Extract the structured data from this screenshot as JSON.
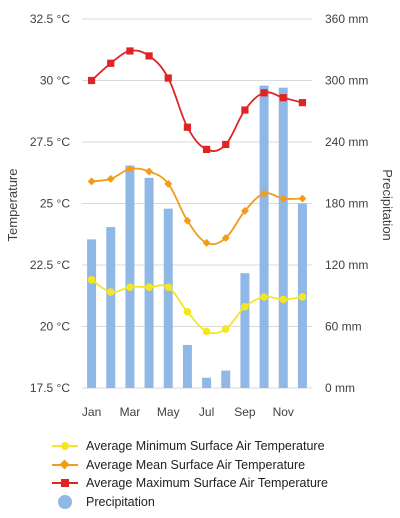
{
  "chart_data": {
    "type": "bar+line",
    "title": "",
    "categories": [
      "Jan",
      "Feb",
      "Mar",
      "Apr",
      "May",
      "Jun",
      "Jul",
      "Aug",
      "Sep",
      "Oct",
      "Nov",
      "Dec"
    ],
    "x_tick_labels": [
      "Jan",
      "",
      "Mar",
      "",
      "May",
      "",
      "Jul",
      "",
      "Sep",
      "",
      "Nov",
      ""
    ],
    "left_axis": {
      "label": "Temperature",
      "range": [
        17.5,
        32.5
      ],
      "ticks": [
        17.5,
        20,
        22.5,
        25,
        27.5,
        30,
        32.5
      ],
      "tick_labels": [
        "17.5 °C",
        "20 °C",
        "22.5 °C",
        "25 °C",
        "27.5 °C",
        "30 °C",
        "32.5 °C"
      ]
    },
    "right_axis": {
      "label": "Precipitation",
      "range": [
        0,
        360
      ],
      "ticks": [
        0,
        60,
        120,
        180,
        240,
        300,
        360
      ],
      "tick_labels": [
        "0 mm",
        "60 mm",
        "120 mm",
        "180 mm",
        "240 mm",
        "300 mm",
        "360 mm"
      ]
    },
    "grid": true,
    "legend_position": "bottom",
    "series": [
      {
        "name": "Average Minimum Surface Air Temperature",
        "type": "line",
        "axis": "left",
        "marker": "circle",
        "color": "#f5e623",
        "values": [
          21.9,
          21.4,
          21.6,
          21.6,
          21.6,
          20.6,
          19.8,
          19.9,
          20.8,
          21.2,
          21.1,
          21.2
        ]
      },
      {
        "name": "Average Mean Surface Air Temperature",
        "type": "line",
        "axis": "left",
        "marker": "diamond",
        "color": "#f39c19",
        "values": [
          25.9,
          26.0,
          26.4,
          26.3,
          25.8,
          24.3,
          23.4,
          23.6,
          24.7,
          25.4,
          25.2,
          25.2
        ]
      },
      {
        "name": "Average Maximum Surface Air Temperature",
        "type": "line",
        "axis": "left",
        "marker": "square",
        "color": "#e02424",
        "values": [
          30.0,
          30.7,
          31.2,
          31.0,
          30.1,
          28.1,
          27.2,
          27.4,
          28.8,
          29.5,
          29.3,
          29.1
        ]
      },
      {
        "name": "Precipitation",
        "type": "bar",
        "axis": "right",
        "color": "#8fb8e6",
        "values": [
          145,
          157,
          217,
          205,
          175,
          42,
          10,
          17,
          112,
          295,
          293,
          180
        ]
      }
    ]
  }
}
